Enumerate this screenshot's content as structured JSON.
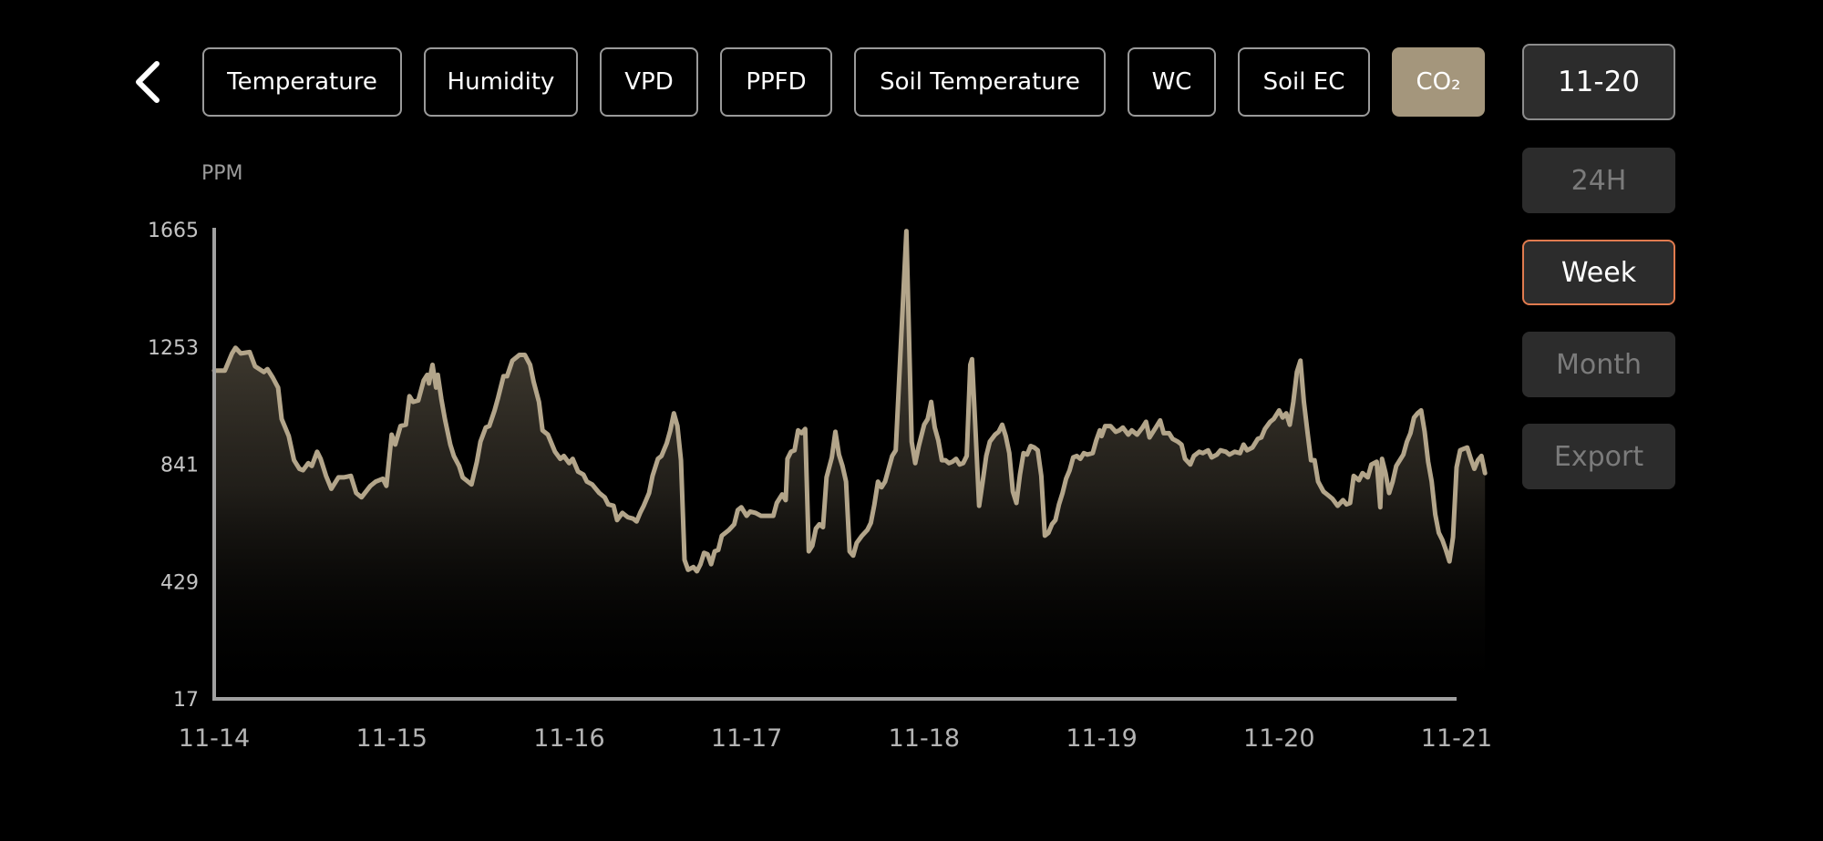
{
  "header": {
    "back_icon": "chevron-left-icon",
    "tabs": [
      {
        "label": "Temperature",
        "active": false
      },
      {
        "label": "Humidity",
        "active": false
      },
      {
        "label": "VPD",
        "active": false
      },
      {
        "label": "PPFD",
        "active": false
      },
      {
        "label": "Soil Temperature",
        "active": false
      },
      {
        "label": "WC",
        "active": false
      },
      {
        "label": "Soil EC",
        "active": false
      },
      {
        "label": "CO₂",
        "active": true
      }
    ]
  },
  "sidebar": {
    "date": "11-20",
    "ranges": [
      {
        "label": "24H",
        "selected": false
      },
      {
        "label": "Week",
        "selected": true
      },
      {
        "label": "Month",
        "selected": false
      }
    ],
    "export_label": "Export"
  },
  "colors": {
    "accent": "#a4967c",
    "selected_border": "#e07b4f",
    "button_bg": "#2c2c2c",
    "background": "#000000"
  },
  "chart_data": {
    "type": "area",
    "ylabel": "PPM",
    "yticks": [
      "1665",
      "1253",
      "841",
      "429",
      "17"
    ],
    "ylim": [
      17,
      1665
    ],
    "x_ticks": [
      "11-14",
      "11-15",
      "11-16",
      "11-17",
      "11-18",
      "11-19",
      "11-20",
      "11-21"
    ],
    "x_unit": "day",
    "series": [
      {
        "values": [
          [
            0.0,
            1170
          ],
          [
            0.06,
            1170
          ],
          [
            0.1,
            1230
          ],
          [
            0.12,
            1250
          ],
          [
            0.15,
            1230
          ],
          [
            0.2,
            1235
          ],
          [
            0.23,
            1185
          ],
          [
            0.28,
            1165
          ],
          [
            0.3,
            1175
          ],
          [
            0.33,
            1145
          ],
          [
            0.36,
            1110
          ],
          [
            0.38,
            1000
          ],
          [
            0.42,
            940
          ],
          [
            0.45,
            855
          ],
          [
            0.48,
            825
          ],
          [
            0.5,
            820
          ],
          [
            0.53,
            845
          ],
          [
            0.55,
            835
          ],
          [
            0.58,
            885
          ],
          [
            0.6,
            860
          ],
          [
            0.63,
            800
          ],
          [
            0.66,
            755
          ],
          [
            0.7,
            795
          ],
          [
            0.73,
            795
          ],
          [
            0.77,
            800
          ],
          [
            0.8,
            740
          ],
          [
            0.83,
            725
          ],
          [
            0.88,
            765
          ],
          [
            0.91,
            780
          ],
          [
            0.95,
            790
          ],
          [
            0.97,
            765
          ],
          [
            1.0,
            945
          ],
          [
            1.02,
            910
          ],
          [
            1.05,
            975
          ],
          [
            1.08,
            980
          ],
          [
            1.1,
            1080
          ],
          [
            1.12,
            1060
          ],
          [
            1.15,
            1065
          ],
          [
            1.18,
            1135
          ],
          [
            1.2,
            1155
          ],
          [
            1.21,
            1125
          ],
          [
            1.23,
            1190
          ],
          [
            1.25,
            1110
          ],
          [
            1.26,
            1155
          ],
          [
            1.28,
            1070
          ],
          [
            1.3,
            1000
          ],
          [
            1.33,
            910
          ],
          [
            1.35,
            870
          ],
          [
            1.38,
            835
          ],
          [
            1.4,
            795
          ],
          [
            1.45,
            770
          ],
          [
            1.48,
            850
          ],
          [
            1.5,
            920
          ],
          [
            1.53,
            970
          ],
          [
            1.55,
            975
          ],
          [
            1.58,
            1030
          ],
          [
            1.6,
            1075
          ],
          [
            1.63,
            1150
          ],
          [
            1.65,
            1150
          ],
          [
            1.68,
            1205
          ],
          [
            1.72,
            1225
          ],
          [
            1.75,
            1225
          ],
          [
            1.78,
            1190
          ],
          [
            1.8,
            1130
          ],
          [
            1.83,
            1060
          ],
          [
            1.85,
            960
          ],
          [
            1.88,
            945
          ],
          [
            1.92,
            885
          ],
          [
            1.95,
            860
          ],
          [
            1.97,
            870
          ],
          [
            2.0,
            845
          ],
          [
            2.02,
            860
          ],
          [
            2.05,
            815
          ],
          [
            2.08,
            805
          ],
          [
            2.1,
            780
          ],
          [
            2.13,
            770
          ],
          [
            2.17,
            740
          ],
          [
            2.2,
            725
          ],
          [
            2.22,
            700
          ],
          [
            2.25,
            695
          ],
          [
            2.27,
            645
          ],
          [
            2.3,
            670
          ],
          [
            2.33,
            655
          ],
          [
            2.36,
            650
          ],
          [
            2.38,
            640
          ],
          [
            2.4,
            670
          ],
          [
            2.42,
            695
          ],
          [
            2.45,
            740
          ],
          [
            2.47,
            800
          ],
          [
            2.5,
            860
          ],
          [
            2.52,
            870
          ],
          [
            2.55,
            915
          ],
          [
            2.57,
            960
          ],
          [
            2.59,
            1020
          ],
          [
            2.61,
            975
          ],
          [
            2.63,
            855
          ],
          [
            2.65,
            505
          ],
          [
            2.67,
            470
          ],
          [
            2.7,
            480
          ],
          [
            2.72,
            465
          ],
          [
            2.74,
            490
          ],
          [
            2.76,
            530
          ],
          [
            2.78,
            525
          ],
          [
            2.8,
            490
          ],
          [
            2.82,
            535
          ],
          [
            2.84,
            540
          ],
          [
            2.86,
            590
          ],
          [
            2.9,
            610
          ],
          [
            2.93,
            630
          ],
          [
            2.95,
            680
          ],
          [
            2.97,
            690
          ],
          [
            3.0,
            660
          ],
          [
            3.02,
            675
          ],
          [
            3.05,
            670
          ],
          [
            3.08,
            660
          ],
          [
            3.1,
            660
          ],
          [
            3.15,
            660
          ],
          [
            3.17,
            705
          ],
          [
            3.2,
            735
          ],
          [
            3.22,
            715
          ],
          [
            3.23,
            860
          ],
          [
            3.25,
            885
          ],
          [
            3.27,
            890
          ],
          [
            3.29,
            960
          ],
          [
            3.31,
            950
          ],
          [
            3.33,
            965
          ],
          [
            3.35,
            535
          ],
          [
            3.37,
            555
          ],
          [
            3.39,
            615
          ],
          [
            3.41,
            630
          ],
          [
            3.43,
            620
          ],
          [
            3.45,
            795
          ],
          [
            3.48,
            865
          ],
          [
            3.5,
            955
          ],
          [
            3.52,
            875
          ],
          [
            3.54,
            835
          ],
          [
            3.56,
            780
          ],
          [
            3.58,
            535
          ],
          [
            3.6,
            520
          ],
          [
            3.62,
            565
          ],
          [
            3.65,
            590
          ],
          [
            3.68,
            610
          ],
          [
            3.7,
            635
          ],
          [
            3.72,
            700
          ],
          [
            3.74,
            780
          ],
          [
            3.76,
            760
          ],
          [
            3.78,
            780
          ],
          [
            3.8,
            825
          ],
          [
            3.82,
            870
          ],
          [
            3.84,
            890
          ],
          [
            3.9,
            1660
          ],
          [
            3.93,
            920
          ],
          [
            3.95,
            845
          ],
          [
            3.97,
            905
          ],
          [
            4.0,
            980
          ],
          [
            4.02,
            1000
          ],
          [
            4.04,
            1060
          ],
          [
            4.06,
            970
          ],
          [
            4.08,
            925
          ],
          [
            4.1,
            855
          ],
          [
            4.12,
            855
          ],
          [
            4.14,
            845
          ],
          [
            4.16,
            850
          ],
          [
            4.18,
            860
          ],
          [
            4.2,
            840
          ],
          [
            4.22,
            845
          ],
          [
            4.24,
            870
          ],
          [
            4.26,
            1190
          ],
          [
            4.27,
            1210
          ],
          [
            4.29,
            955
          ],
          [
            4.31,
            695
          ],
          [
            4.33,
            780
          ],
          [
            4.35,
            870
          ],
          [
            4.37,
            920
          ],
          [
            4.4,
            945
          ],
          [
            4.42,
            955
          ],
          [
            4.44,
            980
          ],
          [
            4.46,
            940
          ],
          [
            4.48,
            880
          ],
          [
            4.5,
            745
          ],
          [
            4.52,
            705
          ],
          [
            4.54,
            805
          ],
          [
            4.56,
            880
          ],
          [
            4.58,
            875
          ],
          [
            4.6,
            905
          ],
          [
            4.62,
            900
          ],
          [
            4.64,
            890
          ],
          [
            4.66,
            800
          ],
          [
            4.68,
            590
          ],
          [
            4.7,
            600
          ],
          [
            4.72,
            630
          ],
          [
            4.74,
            645
          ],
          [
            4.76,
            700
          ],
          [
            4.78,
            740
          ],
          [
            4.8,
            790
          ],
          [
            4.82,
            820
          ],
          [
            4.84,
            865
          ],
          [
            4.86,
            870
          ],
          [
            4.88,
            860
          ],
          [
            4.9,
            880
          ],
          [
            4.92,
            875
          ],
          [
            4.95,
            880
          ],
          [
            4.97,
            925
          ],
          [
            4.99,
            960
          ],
          [
            5.0,
            940
          ],
          [
            5.02,
            975
          ],
          [
            5.05,
            975
          ],
          [
            5.08,
            955
          ],
          [
            5.1,
            960
          ],
          [
            5.12,
            970
          ],
          [
            5.15,
            945
          ],
          [
            5.17,
            960
          ],
          [
            5.2,
            945
          ],
          [
            5.23,
            970
          ],
          [
            5.25,
            990
          ],
          [
            5.27,
            935
          ],
          [
            5.3,
            965
          ],
          [
            5.33,
            995
          ],
          [
            5.35,
            950
          ],
          [
            5.38,
            950
          ],
          [
            5.4,
            930
          ],
          [
            5.43,
            920
          ],
          [
            5.45,
            910
          ],
          [
            5.47,
            860
          ],
          [
            5.5,
            840
          ],
          [
            5.52,
            870
          ],
          [
            5.55,
            885
          ],
          [
            5.57,
            880
          ],
          [
            5.6,
            890
          ],
          [
            5.62,
            865
          ],
          [
            5.65,
            875
          ],
          [
            5.67,
            890
          ],
          [
            5.7,
            885
          ],
          [
            5.72,
            875
          ],
          [
            5.75,
            885
          ],
          [
            5.78,
            880
          ],
          [
            5.8,
            910
          ],
          [
            5.82,
            890
          ],
          [
            5.85,
            900
          ],
          [
            5.88,
            930
          ],
          [
            5.9,
            935
          ],
          [
            5.92,
            965
          ],
          [
            5.95,
            990
          ],
          [
            5.97,
            1000
          ],
          [
            6.0,
            1030
          ],
          [
            6.02,
            1005
          ],
          [
            6.04,
            1020
          ],
          [
            6.06,
            980
          ],
          [
            6.08,
            1060
          ],
          [
            6.1,
            1165
          ],
          [
            6.12,
            1205
          ],
          [
            6.14,
            1060
          ],
          [
            6.16,
            955
          ],
          [
            6.18,
            855
          ],
          [
            6.2,
            855
          ],
          [
            6.22,
            780
          ],
          [
            6.25,
            745
          ],
          [
            6.27,
            735
          ],
          [
            6.3,
            720
          ],
          [
            6.33,
            695
          ],
          [
            6.36,
            715
          ],
          [
            6.38,
            700
          ],
          [
            6.4,
            705
          ],
          [
            6.42,
            800
          ],
          [
            6.45,
            785
          ],
          [
            6.47,
            810
          ],
          [
            6.5,
            795
          ],
          [
            6.52,
            840
          ],
          [
            6.55,
            850
          ],
          [
            6.57,
            690
          ],
          [
            6.58,
            860
          ],
          [
            6.6,
            810
          ],
          [
            6.62,
            740
          ],
          [
            6.64,
            780
          ],
          [
            6.66,
            835
          ],
          [
            6.7,
            875
          ],
          [
            6.72,
            920
          ],
          [
            6.74,
            950
          ],
          [
            6.76,
            1005
          ],
          [
            6.78,
            1020
          ],
          [
            6.8,
            1030
          ],
          [
            6.82,
            955
          ],
          [
            6.84,
            850
          ],
          [
            6.86,
            780
          ],
          [
            6.88,
            665
          ],
          [
            6.9,
            600
          ],
          [
            6.92,
            575
          ],
          [
            6.94,
            540
          ],
          [
            6.96,
            500
          ],
          [
            6.98,
            585
          ],
          [
            7.0,
            830
          ],
          [
            7.02,
            890
          ],
          [
            7.04,
            895
          ],
          [
            7.06,
            900
          ],
          [
            7.08,
            860
          ],
          [
            7.1,
            825
          ],
          [
            7.12,
            855
          ],
          [
            7.14,
            870
          ],
          [
            7.16,
            810
          ]
        ]
      }
    ]
  }
}
